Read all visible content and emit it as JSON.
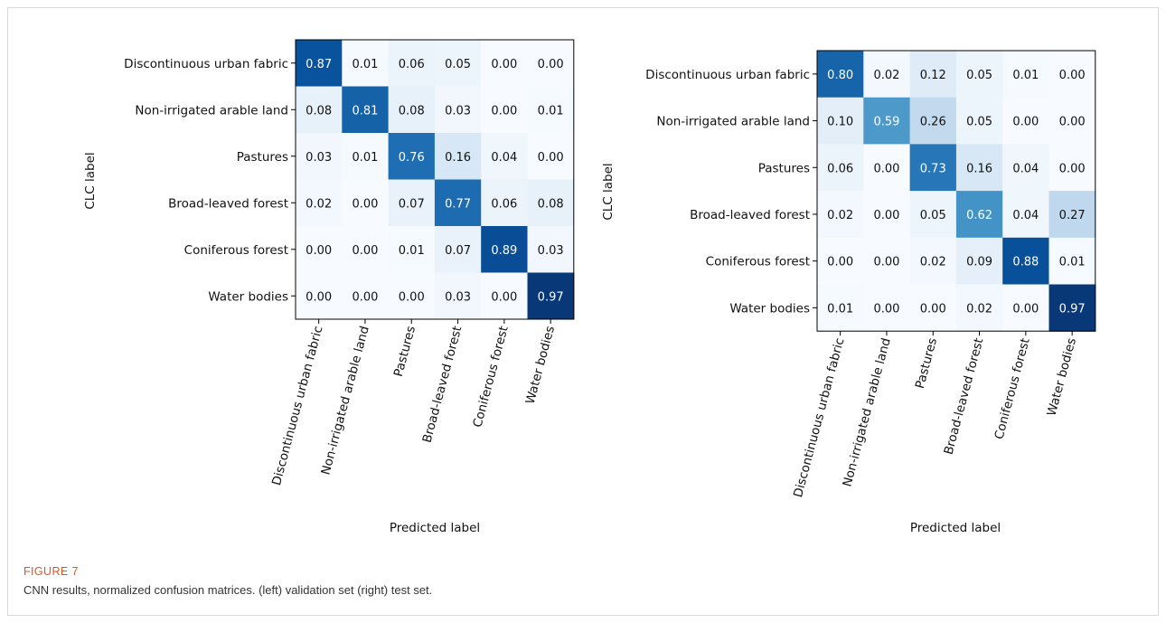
{
  "figure": {
    "label": "FIGURE 7",
    "caption": "CNN results, normalized confusion matrices. (left) validation set (right) test set."
  },
  "colors": {
    "low": "#f7fbff",
    "high": "#08306b",
    "frame": "#d9d9d9",
    "caption_label": "#e2541f"
  },
  "chart_data": [
    {
      "type": "heatmap",
      "ylabel": "CLC label",
      "xlabel": "Predicted label",
      "row_labels": [
        "Discontinuous urban fabric",
        "Non-irrigated arable land",
        "Pastures",
        "Broad-leaved forest",
        "Coniferous forest",
        "Water bodies"
      ],
      "col_labels": [
        "Discontinuous urban fabric",
        "Non-irrigated arable land",
        "Pastures",
        "Broad-leaved forest",
        "Coniferous forest",
        "Water bodies"
      ],
      "values": [
        [
          0.87,
          0.01,
          0.06,
          0.05,
          0.0,
          0.0
        ],
        [
          0.08,
          0.81,
          0.08,
          0.03,
          0.0,
          0.01
        ],
        [
          0.03,
          0.01,
          0.76,
          0.16,
          0.04,
          0.0
        ],
        [
          0.02,
          0.0,
          0.07,
          0.77,
          0.06,
          0.08
        ],
        [
          0.0,
          0.0,
          0.01,
          0.07,
          0.89,
          0.03
        ],
        [
          0.0,
          0.0,
          0.0,
          0.03,
          0.0,
          0.97
        ]
      ],
      "colormap": "Blues",
      "value_range": [
        0,
        1
      ]
    },
    {
      "type": "heatmap",
      "ylabel": "CLC label",
      "xlabel": "Predicted label",
      "row_labels": [
        "Discontinuous urban fabric",
        "Non-irrigated arable land",
        "Pastures",
        "Broad-leaved forest",
        "Coniferous forest",
        "Water bodies"
      ],
      "col_labels": [
        "Discontinuous urban fabric",
        "Non-irrigated arable land",
        "Pastures",
        "Broad-leaved forest",
        "Coniferous forest",
        "Water bodies"
      ],
      "values": [
        [
          0.8,
          0.02,
          0.12,
          0.05,
          0.01,
          0.0
        ],
        [
          0.1,
          0.59,
          0.26,
          0.05,
          0.0,
          0.0
        ],
        [
          0.06,
          0.0,
          0.73,
          0.16,
          0.04,
          0.0
        ],
        [
          0.02,
          0.0,
          0.05,
          0.62,
          0.04,
          0.27
        ],
        [
          0.0,
          0.0,
          0.02,
          0.09,
          0.88,
          0.01
        ],
        [
          0.01,
          0.0,
          0.0,
          0.02,
          0.0,
          0.97
        ]
      ],
      "colormap": "Blues",
      "value_range": [
        0,
        1
      ]
    }
  ]
}
